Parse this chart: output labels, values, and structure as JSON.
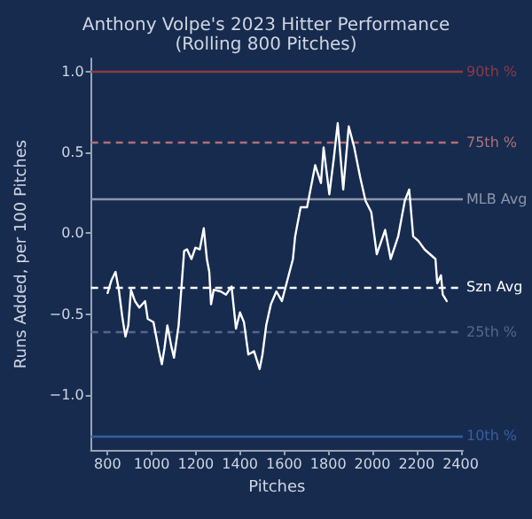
{
  "chart_data": {
    "type": "line",
    "title": "Anthony Volpe's 2023 Hitter Performance\n(Rolling 800 Pitches)",
    "xlabel": "Pitches",
    "ylabel": "Runs Added, per 100 Pitches",
    "xlim": [
      725,
      2410
    ],
    "xticks": [
      800,
      1000,
      1200,
      1400,
      1600,
      1800,
      2000,
      2200,
      2400
    ],
    "ylim": [
      -1.34,
      1.08
    ],
    "yticks": [
      {
        "value": -1,
        "label": "−1.0"
      },
      {
        "value": -0.5,
        "label": "−0.5"
      },
      {
        "value": 0,
        "label": "0.0"
      },
      {
        "value": 0.5,
        "label": "0.5"
      },
      {
        "value": 1,
        "label": "1.0"
      }
    ],
    "grid": false,
    "marker": "none",
    "line_style": "solid",
    "series": [
      {
        "color": "#ffffff",
        "x": [
          800,
          818,
          836,
          851,
          868,
          881,
          894,
          906,
          924,
          944,
          970,
          982,
          1008,
          1033,
          1046,
          1058,
          1071,
          1089,
          1101,
          1122,
          1134,
          1147,
          1160,
          1180,
          1198,
          1218,
          1236,
          1250,
          1261,
          1269,
          1281,
          1312,
          1337,
          1362,
          1382,
          1400,
          1418,
          1438,
          1464,
          1489,
          1502,
          1519,
          1540,
          1565,
          1590,
          1615,
          1640,
          1650,
          1675,
          1704,
          1741,
          1767,
          1779,
          1805,
          1825,
          1843,
          1868,
          1893,
          1918,
          1944,
          1969,
          1995,
          2020,
          2058,
          2083,
          2117,
          2147,
          2167,
          2185,
          2210,
          2236,
          2261,
          2286,
          2294,
          2311,
          2319,
          2337
        ],
        "values": [
          -0.37,
          -0.29,
          -0.24,
          -0.35,
          -0.53,
          -0.64,
          -0.57,
          -0.35,
          -0.42,
          -0.46,
          -0.42,
          -0.53,
          -0.55,
          -0.73,
          -0.81,
          -0.71,
          -0.57,
          -0.7,
          -0.77,
          -0.57,
          -0.35,
          -0.11,
          -0.1,
          -0.16,
          -0.09,
          -0.1,
          0.03,
          -0.16,
          -0.24,
          -0.44,
          -0.35,
          -0.36,
          -0.38,
          -0.33,
          -0.59,
          -0.49,
          -0.55,
          -0.75,
          -0.73,
          -0.84,
          -0.75,
          -0.57,
          -0.44,
          -0.36,
          -0.42,
          -0.29,
          -0.16,
          -0.02,
          0.16,
          0.16,
          0.42,
          0.31,
          0.53,
          0.24,
          0.46,
          0.68,
          0.27,
          0.66,
          0.53,
          0.35,
          0.2,
          0.13,
          -0.13,
          0.02,
          -0.16,
          -0.02,
          0.2,
          0.27,
          -0.02,
          -0.05,
          -0.1,
          -0.13,
          -0.16,
          -0.31,
          -0.26,
          -0.38,
          -0.42
        ]
      }
    ],
    "ref_lines": [
      {
        "axis": "y",
        "value": 1.0,
        "label": "90th %",
        "color": "#8b3a44",
        "line_style": "solid"
      },
      {
        "axis": "y",
        "value": 0.565,
        "label": "75th %",
        "color": "#b07078",
        "line_style": "dashed"
      },
      {
        "axis": "y",
        "value": 0.21,
        "label": "MLB Avg",
        "color": "#8c96a8",
        "line_style": "solid"
      },
      {
        "axis": "y",
        "value": -0.325,
        "label": "Szn Avg",
        "color": "#ffffff",
        "line_style": "dashed"
      },
      {
        "axis": "y",
        "value": -0.61,
        "label": "25th %",
        "color": "#56668a",
        "line_style": "dashed"
      },
      {
        "axis": "y",
        "value": -1.25,
        "label": "10th %",
        "color": "#3460a0",
        "line_style": "solid"
      }
    ]
  }
}
